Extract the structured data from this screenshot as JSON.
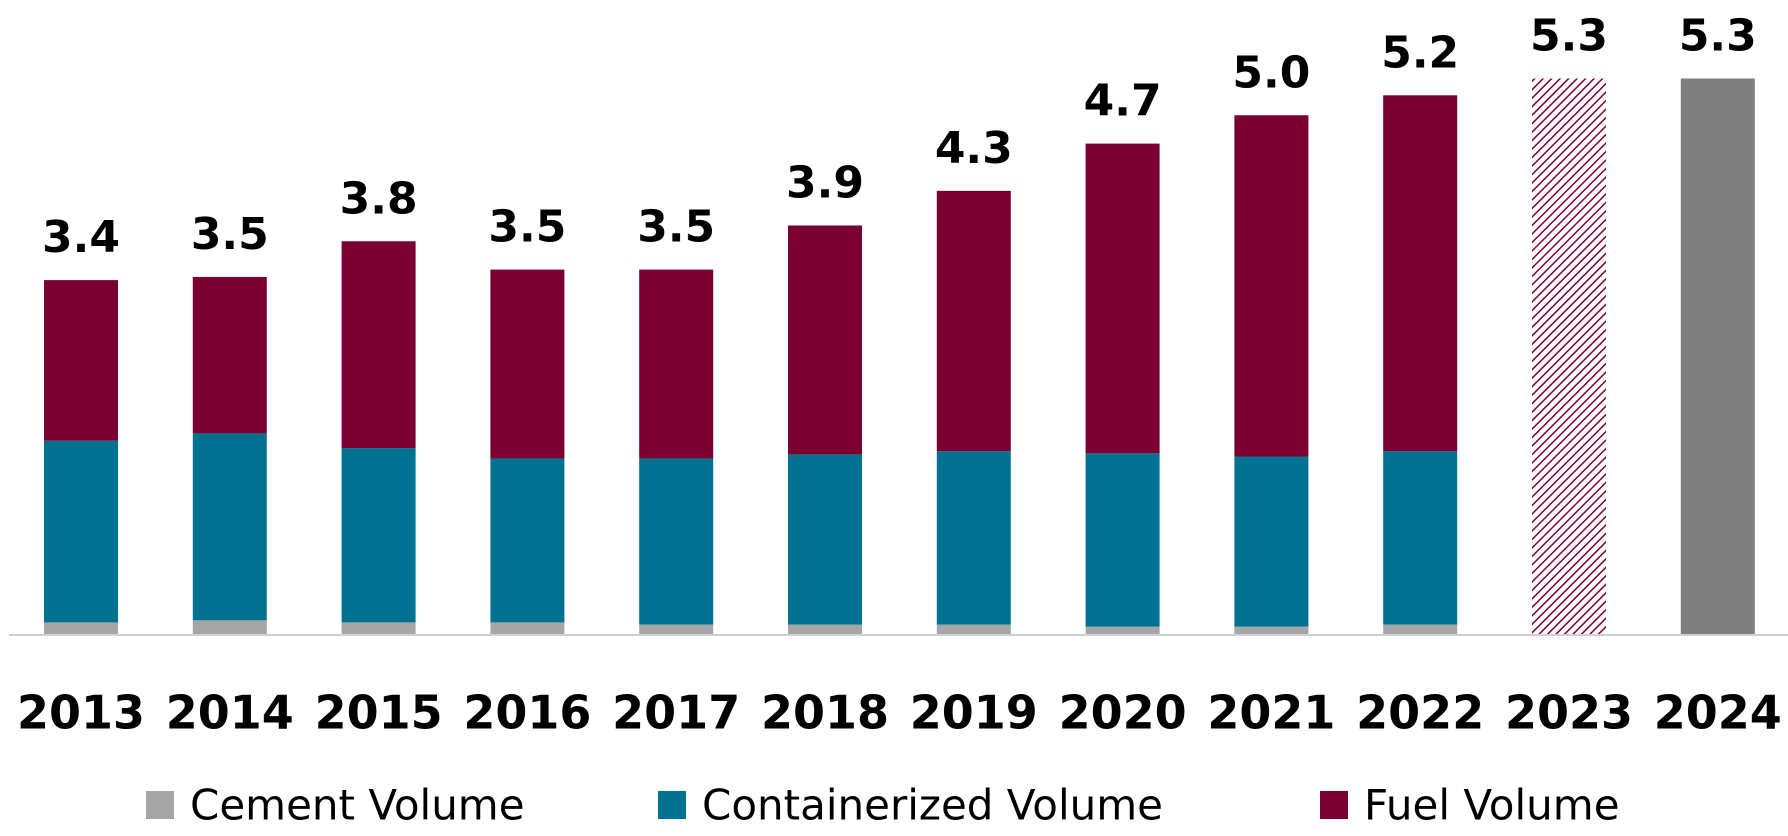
{
  "chart_data": {
    "type": "stacked_bar",
    "categories": [
      "2013",
      "2014",
      "2015",
      "2016",
      "2017",
      "2018",
      "2019",
      "2020",
      "2021",
      "2022",
      "2023",
      "2024"
    ],
    "series": [
      {
        "name": "Cement Volume",
        "color": "#a6a6a6",
        "values": [
          0.12,
          0.14,
          0.12,
          0.12,
          0.1,
          0.1,
          0.1,
          0.08,
          0.08,
          0.1,
          null,
          null
        ]
      },
      {
        "name": "Containerized Volume",
        "color": "#007291",
        "values": [
          1.73,
          1.78,
          1.66,
          1.56,
          1.58,
          1.62,
          1.65,
          1.65,
          1.62,
          1.65,
          null,
          null
        ]
      },
      {
        "name": "Fuel Volume",
        "color": "#7b0032",
        "values": [
          1.53,
          1.49,
          1.97,
          1.8,
          1.8,
          2.18,
          2.48,
          2.95,
          3.25,
          3.39,
          null,
          null
        ]
      }
    ],
    "totals": {
      "values": [
        3.4,
        3.5,
        3.8,
        3.5,
        3.5,
        3.9,
        4.3,
        4.7,
        5.0,
        5.2,
        5.3,
        5.3
      ],
      "value_labels": [
        "3.4",
        "3.5",
        "3.8",
        "3.5",
        "3.5",
        "3.9",
        "4.3",
        "4.7",
        "5.0",
        "5.2",
        "5.3",
        "5.3"
      ],
      "colors": [
        null,
        null,
        null,
        null,
        null,
        null,
        null,
        null,
        null,
        null,
        "#7b0032",
        "#7f7f7f"
      ],
      "hatch": [
        false,
        false,
        false,
        false,
        false,
        false,
        false,
        false,
        false,
        false,
        true,
        false
      ]
    }
  }
}
